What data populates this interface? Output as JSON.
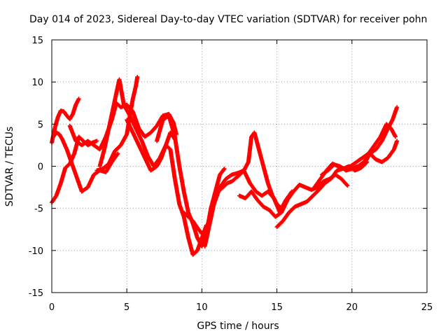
{
  "chart_data": {
    "type": "scatter",
    "title": "Day 014 of 2023, Sidereal Day-to-day VTEC variation (SDTVAR) for receiver pohn",
    "xlabel": "GPS time / hours",
    "ylabel": "SDTVAR / TECUs",
    "xlim": [
      0,
      25
    ],
    "ylim": [
      -15,
      15
    ],
    "xticks": [
      0,
      5,
      10,
      15,
      20,
      25
    ],
    "yticks": [
      -15,
      -10,
      -5,
      0,
      5,
      10,
      15
    ],
    "xtick_labels": [
      "0",
      "5",
      "10",
      "15",
      "20",
      "25"
    ],
    "ytick_labels": [
      "-15",
      "-10",
      "-5",
      "0",
      "5",
      "10",
      "15"
    ],
    "grid": true,
    "marker": "+",
    "series": [
      {
        "color": "#ff0000",
        "x": [
          0.0,
          0.2,
          0.4,
          0.6,
          0.8,
          1.0,
          1.2,
          1.4,
          1.6,
          1.8
        ],
        "y": [
          2.8,
          4.5,
          5.8,
          6.6,
          6.5,
          6.0,
          5.6,
          6.2,
          7.3,
          8.0
        ]
      },
      {
        "color": "#ff0000",
        "x": [
          0.1,
          0.3,
          0.5,
          0.7,
          1.0,
          1.3,
          1.6,
          2.0,
          2.4,
          2.8,
          3.2,
          3.6,
          4.0,
          4.4
        ],
        "y": [
          3.5,
          4.0,
          3.8,
          3.2,
          2.0,
          0.5,
          -1.0,
          -3.0,
          -2.5,
          -1.0,
          -0.5,
          -0.7,
          0.5,
          1.5
        ]
      },
      {
        "color": "#ff0000",
        "x": [
          0.0,
          0.3,
          0.6,
          0.9,
          1.2,
          1.5,
          1.8,
          2.1,
          2.4,
          2.7,
          3.0
        ],
        "y": [
          -4.3,
          -3.5,
          -2.0,
          -0.2,
          0.3,
          1.5,
          3.5,
          3.0,
          2.5,
          2.8,
          3.0
        ]
      },
      {
        "color": "#ff0000",
        "x": [
          1.2,
          1.6,
          2.0,
          2.4,
          2.8,
          3.2,
          3.6,
          4.0,
          4.3,
          4.6,
          5.0,
          5.4,
          5.8,
          6.2,
          6.6,
          7.0,
          7.4,
          7.8,
          8.1,
          8.3
        ],
        "y": [
          4.8,
          3.0,
          2.5,
          3.0,
          2.5,
          2.0,
          3.5,
          5.5,
          7.5,
          7.0,
          7.3,
          6.5,
          4.5,
          3.5,
          4.0,
          4.8,
          6.0,
          6.2,
          5.2,
          3.8
        ]
      },
      {
        "color": "#ff0000",
        "x": [
          3.2,
          3.5,
          3.8,
          4.1,
          4.4,
          4.5,
          4.8,
          5.2,
          5.6,
          6.0,
          6.4,
          6.8,
          7.2,
          7.6,
          7.9,
          8.2
        ],
        "y": [
          0.0,
          2.0,
          4.5,
          7.0,
          9.5,
          10.3,
          7.3,
          6.0,
          4.5,
          3.0,
          1.2,
          0.0,
          1.0,
          2.5,
          4.0,
          3.2
        ]
      },
      {
        "color": "#ff0000",
        "x": [
          3.0,
          3.4,
          3.8,
          4.2,
          4.6,
          5.0,
          5.2,
          5.4,
          5.6,
          5.7
        ],
        "y": [
          -0.5,
          -0.3,
          0.3,
          1.8,
          2.5,
          3.8,
          6.0,
          8.0,
          9.5,
          10.6
        ]
      },
      {
        "color": "#ff0000",
        "x": [
          5.0,
          5.4,
          5.8,
          6.2,
          6.6,
          7.0,
          7.3,
          7.6,
          7.9,
          8.2,
          8.5,
          8.8,
          9.1,
          9.4,
          9.7,
          10.0,
          10.3
        ],
        "y": [
          5.5,
          4.0,
          2.5,
          1.0,
          -0.5,
          0.0,
          1.0,
          2.5,
          2.0,
          -1.5,
          -4.5,
          -6.0,
          -8.5,
          -10.5,
          -10.0,
          -8.5,
          -7.0
        ]
      },
      {
        "color": "#ff0000",
        "x": [
          7.0,
          7.4,
          7.8,
          8.2,
          8.5,
          8.8,
          9.1,
          9.4,
          9.7,
          10.0,
          10.3,
          10.6,
          10.9,
          11.2,
          11.5
        ],
        "y": [
          3.0,
          5.5,
          6.0,
          3.5,
          0.0,
          -3.0,
          -5.5,
          -6.8,
          -8.5,
          -9.5,
          -8.0,
          -5.0,
          -3.0,
          -1.0,
          -0.3
        ]
      },
      {
        "color": "#ff0000",
        "x": [
          8.8,
          9.1,
          9.4,
          9.7,
          10.0,
          10.3,
          10.6,
          10.9,
          11.2,
          11.6,
          12.0,
          12.4,
          12.8,
          13.1,
          13.3,
          13.5,
          13.8,
          14.1,
          14.4,
          14.7,
          15.0,
          15.3,
          15.6,
          16.0
        ],
        "y": [
          -5.5,
          -6.0,
          -6.5,
          -7.3,
          -8.0,
          -7.5,
          -5.5,
          -4.0,
          -2.5,
          -1.5,
          -1.0,
          -0.8,
          -0.5,
          0.5,
          3.5,
          4.0,
          2.0,
          0.0,
          -2.0,
          -3.5,
          -4.5,
          -5.0,
          -4.0,
          -3.0
        ]
      },
      {
        "color": "#ff0000",
        "x": [
          10.2,
          10.5,
          10.8,
          11.1,
          11.4,
          11.7,
          12.0,
          12.4,
          12.8,
          13.2,
          13.6,
          14.0,
          14.4,
          14.8,
          15.2
        ],
        "y": [
          -9.5,
          -7.0,
          -4.5,
          -3.0,
          -2.5,
          -2.0,
          -1.8,
          -1.2,
          -0.5,
          -2.0,
          -3.0,
          -3.5,
          -3.0,
          -3.8,
          -5.5
        ]
      },
      {
        "color": "#ff0000",
        "x": [
          12.5,
          12.9,
          13.3,
          13.7,
          14.1,
          14.5,
          14.9,
          15.3,
          15.7,
          16.1,
          16.5,
          16.9,
          17.3,
          17.7,
          18.1,
          18.5,
          18.9,
          19.3,
          19.7
        ],
        "y": [
          -3.5,
          -3.8,
          -3.0,
          -4.0,
          -4.8,
          -5.2,
          -6.0,
          -5.5,
          -4.0,
          -3.0,
          -2.2,
          -2.5,
          -2.8,
          -2.5,
          -1.8,
          -1.5,
          -1.0,
          -1.5,
          -2.3
        ]
      },
      {
        "color": "#ff0000",
        "x": [
          15.0,
          15.4,
          15.8,
          16.2,
          16.6,
          17.0,
          17.4,
          17.8,
          18.2,
          18.6,
          19.0,
          19.4,
          19.8,
          20.2,
          20.6,
          21.0
        ],
        "y": [
          -7.2,
          -6.5,
          -5.5,
          -4.8,
          -4.5,
          -4.2,
          -3.5,
          -2.8,
          -2.0,
          -1.5,
          -0.5,
          -0.3,
          0.0,
          -0.5,
          -0.2,
          0.5
        ]
      },
      {
        "color": "#ff0000",
        "x": [
          17.5,
          17.9,
          18.3,
          18.7,
          19.1,
          19.5,
          19.9,
          20.3,
          20.7,
          21.1,
          21.5,
          21.9,
          22.3,
          22.6,
          22.9
        ],
        "y": [
          -2.5,
          -1.5,
          -0.5,
          0.3,
          0.0,
          -0.3,
          0.0,
          0.5,
          1.0,
          1.5,
          2.5,
          3.5,
          5.0,
          4.5,
          3.5
        ]
      },
      {
        "color": "#ff0000",
        "x": [
          18.0,
          18.4,
          18.8,
          19.2,
          19.6,
          20.0,
          20.4,
          20.8,
          21.2,
          21.6,
          22.0,
          22.4,
          22.7,
          23.0
        ],
        "y": [
          -1.0,
          -0.5,
          0.2,
          0.0,
          -0.5,
          -0.3,
          0.0,
          0.2,
          1.5,
          2.0,
          3.0,
          4.5,
          5.5,
          7.0
        ]
      },
      {
        "color": "#ff0000",
        "x": [
          20.0,
          20.4,
          20.8,
          21.2,
          21.6,
          22.0,
          22.4,
          22.8,
          23.0
        ],
        "y": [
          -0.3,
          0.0,
          0.5,
          1.5,
          0.8,
          0.5,
          1.0,
          2.0,
          3.0
        ]
      }
    ]
  }
}
